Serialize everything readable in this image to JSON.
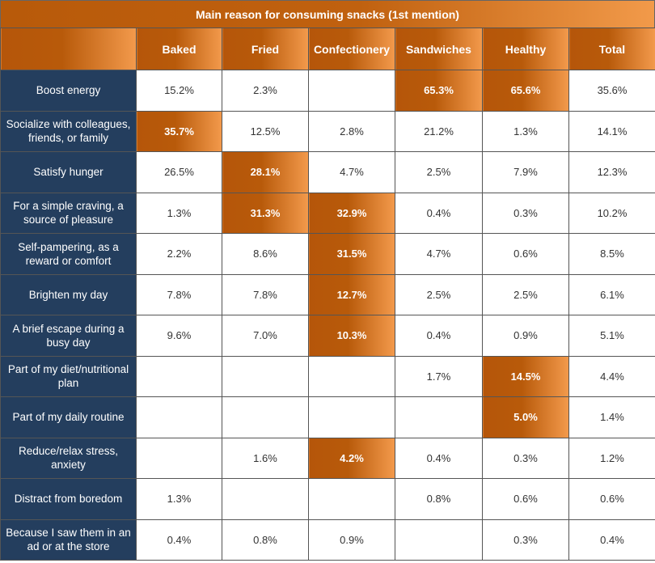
{
  "chart_data": {
    "type": "table",
    "title": "Main reason for consuming snacks (1st mention)",
    "columns": [
      "Baked",
      "Fried",
      "Confectionery",
      "Sandwiches",
      "Healthy",
      "Total"
    ],
    "rows": [
      {
        "label": "Boost energy",
        "values": [
          "15.2%",
          "2.3%",
          "",
          "65.3%",
          "65.6%",
          "35.6%"
        ],
        "highlight": [
          3,
          4
        ]
      },
      {
        "label": "Socialize with colleagues, friends, or family",
        "values": [
          "35.7%",
          "12.5%",
          "2.8%",
          "21.2%",
          "1.3%",
          "14.1%"
        ],
        "highlight": [
          0
        ]
      },
      {
        "label": "Satisfy hunger",
        "values": [
          "26.5%",
          "28.1%",
          "4.7%",
          "2.5%",
          "7.9%",
          "12.3%"
        ],
        "highlight": [
          1
        ]
      },
      {
        "label": "For a simple craving, a source of pleasure",
        "values": [
          "1.3%",
          "31.3%",
          "32.9%",
          "0.4%",
          "0.3%",
          "10.2%"
        ],
        "highlight": [
          1,
          2
        ]
      },
      {
        "label": "Self-pampering, as a reward or comfort",
        "values": [
          "2.2%",
          "8.6%",
          "31.5%",
          "4.7%",
          "0.6%",
          "8.5%"
        ],
        "highlight": [
          2
        ]
      },
      {
        "label": "Brighten my day",
        "values": [
          "7.8%",
          "7.8%",
          "12.7%",
          "2.5%",
          "2.5%",
          "6.1%"
        ],
        "highlight": [
          2
        ]
      },
      {
        "label": "A brief escape during a busy day",
        "values": [
          "9.6%",
          "7.0%",
          "10.3%",
          "0.4%",
          "0.9%",
          "5.1%"
        ],
        "highlight": [
          2
        ]
      },
      {
        "label": "Part of my diet/nutritional plan",
        "values": [
          "",
          "",
          "",
          "1.7%",
          "14.5%",
          "4.4%"
        ],
        "highlight": [
          4
        ]
      },
      {
        "label": "Part of my daily routine",
        "values": [
          "",
          "",
          "",
          "",
          "5.0%",
          "1.4%"
        ],
        "highlight": [
          4
        ]
      },
      {
        "label": "Reduce/relax stress, anxiety",
        "values": [
          "",
          "1.6%",
          "4.2%",
          "0.4%",
          "0.3%",
          "1.2%"
        ],
        "highlight": [
          2
        ]
      },
      {
        "label": "Distract from boredom",
        "values": [
          "1.3%",
          "",
          "",
          "0.8%",
          "0.6%",
          "0.6%"
        ],
        "highlight": []
      },
      {
        "label": "Because I saw them in an ad or at the store",
        "values": [
          "0.4%",
          "0.8%",
          "0.9%",
          "",
          "0.3%",
          "0.4%"
        ],
        "highlight": []
      }
    ],
    "colors": {
      "header": "#b85a0a",
      "highlight_end": "#f39a4c",
      "row_label": "#243e5e"
    }
  }
}
